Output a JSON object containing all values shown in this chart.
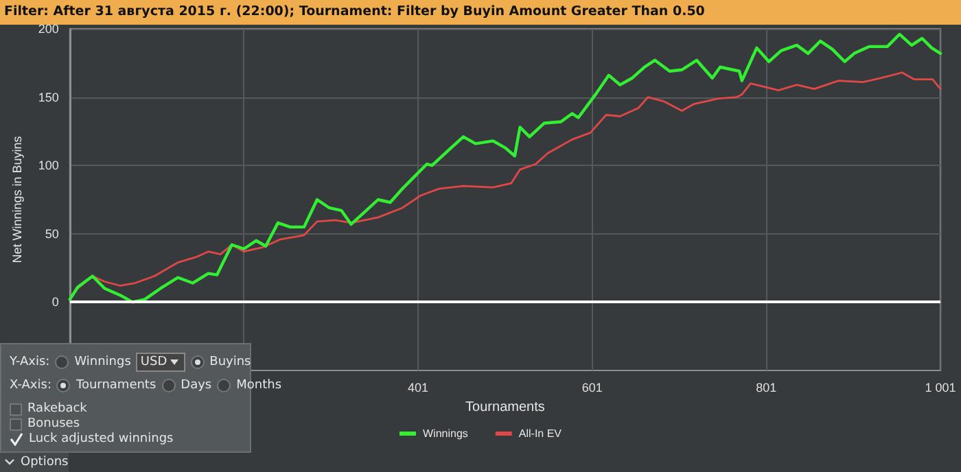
{
  "chart_data": {
    "type": "line",
    "title": "Filter: After 31 августа 2015 г. (22:00); Tournament: Filter by Buyin Amount Greater Than 0.50",
    "xlabel": "Tournaments",
    "ylabel": "Net Winnings in Buyins",
    "xlim": [
      1,
      1001
    ],
    "xticks": [
      {
        "value": 1,
        "label": null
      },
      {
        "value": 201,
        "label": null
      },
      401,
      601,
      801,
      {
        "value": 1001,
        "label": "1 001"
      }
    ],
    "ylim": [
      -50,
      200
    ],
    "yticks": [
      0,
      50,
      100,
      150,
      200
    ],
    "grid": true,
    "legend": "bottom",
    "marker": "none",
    "line_style": "solid",
    "ref_lines": [
      {
        "axis": "y",
        "value": 0,
        "label": null,
        "color": "#ffffff"
      }
    ],
    "annotations": [
      "Y-Axis:",
      "Winnings",
      "USD",
      "Buyins",
      "X-Axis:",
      "Tournaments",
      "Days",
      "Months",
      "Rakeback",
      "Bonuses",
      "Luck adjusted winnings",
      "Options"
    ],
    "series": [
      {
        "name": "Winnings",
        "color": "#33ee33",
        "x": [
          1,
          10,
          27,
          41,
          59,
          73,
          87,
          105,
          125,
          142,
          160,
          170,
          187,
          201,
          215,
          226,
          240,
          254,
          270,
          285,
          299,
          313,
          324,
          338,
          355,
          369,
          383,
          397,
          411,
          417,
          439,
          453,
          467,
          487,
          501,
          512,
          518,
          529,
          546,
          565,
          578,
          585,
          606,
          620,
          633,
          647,
          661,
          673,
          690,
          704,
          721,
          739,
          748,
          770,
          773,
          790,
          804,
          818,
          836,
          849,
          863,
          877,
          891,
          902,
          919,
          940,
          954,
          968,
          980,
          991,
          1001
        ],
        "values": [
          2,
          11,
          19,
          10,
          5,
          0,
          2,
          10,
          18,
          14,
          21,
          20,
          42,
          39,
          45,
          41,
          58,
          55,
          55,
          75,
          69,
          67,
          57,
          65,
          75,
          73,
          83,
          92,
          101,
          100,
          113,
          121,
          116,
          118,
          113,
          107,
          128,
          121,
          131,
          132,
          138,
          135,
          153,
          166,
          159,
          164,
          172,
          177,
          169,
          170,
          177,
          164,
          172,
          169,
          162,
          186,
          176,
          184,
          188,
          182,
          191,
          185,
          176,
          182,
          187,
          187,
          196,
          188,
          193,
          186,
          182
        ]
      },
      {
        "name": "All-In EV",
        "color": "#e04848",
        "x": [
          1,
          10,
          27,
          41,
          59,
          76,
          98,
          125,
          146,
          160,
          174,
          187,
          201,
          222,
          243,
          270,
          285,
          306,
          324,
          355,
          383,
          404,
          425,
          453,
          487,
          508,
          518,
          536,
          550,
          578,
          599,
          617,
          633,
          654,
          665,
          683,
          704,
          718,
          746,
          767,
          773,
          783,
          815,
          836,
          856,
          884,
          912,
          933,
          957,
          971,
          992,
          1001
        ],
        "values": [
          2,
          10,
          19,
          15,
          12,
          14,
          19,
          29,
          33,
          37,
          35,
          42,
          37,
          40,
          46,
          49,
          59,
          60,
          58,
          62,
          69,
          78,
          83,
          85,
          84,
          87,
          97,
          101,
          109,
          119,
          124,
          137,
          136,
          142,
          150,
          147,
          140,
          145,
          149,
          150,
          152,
          160,
          155,
          159,
          156,
          162,
          161,
          164,
          168,
          163,
          163,
          156
        ]
      }
    ]
  }
}
